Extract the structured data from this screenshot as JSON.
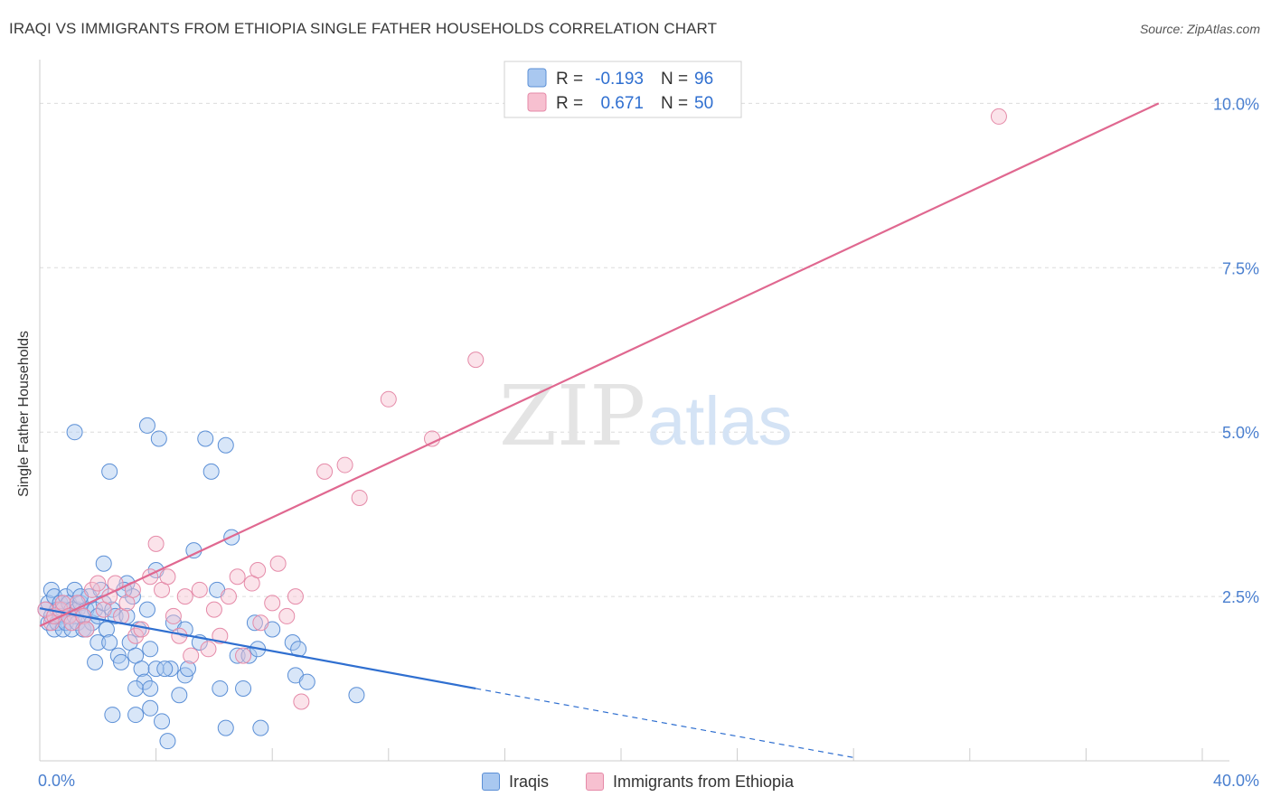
{
  "title": "IRAQI VS IMMIGRANTS FROM ETHIOPIA SINGLE FATHER HOUSEHOLDS CORRELATION CHART",
  "source": "Source: ZipAtlas.com",
  "watermark": {
    "zip": "ZIP",
    "atlas": "atlas"
  },
  "colors": {
    "blue_fill": "#a9c8f0",
    "blue_stroke": "#5b8fd6",
    "blue_line": "#2f6fd0",
    "pink_fill": "#f7c0d0",
    "pink_stroke": "#e58aa8",
    "pink_line": "#e06890",
    "tick_label": "#4a7fcf",
    "grid": "#dcdcdc"
  },
  "legend": {
    "rows": [
      {
        "r_label": "R =",
        "r_value": "-0.193",
        "n_label": "N =",
        "n_value": "96"
      },
      {
        "r_label": "R =",
        "r_value": "0.671",
        "n_label": "N =",
        "n_value": "50"
      }
    ]
  },
  "bottom_legend": {
    "series1": "Iraqis",
    "series2": "Immigrants from Ethiopia"
  },
  "chart_data": {
    "type": "scatter",
    "title": "IRAQI VS IMMIGRANTS FROM ETHIOPIA SINGLE FATHER HOUSEHOLDS CORRELATION CHART",
    "xlabel": "",
    "ylabel": "Single Father Households",
    "xlim": [
      0,
      40
    ],
    "ylim": [
      0,
      10.5
    ],
    "x_tick_labels": [
      "0.0%",
      "40.0%"
    ],
    "y_ticks": [
      2.5,
      5.0,
      7.5,
      10.0
    ],
    "y_tick_labels": [
      "2.5%",
      "5.0%",
      "7.5%",
      "10.0%"
    ],
    "grid": true,
    "legend_position": "top-center",
    "series": [
      {
        "name": "Iraqis",
        "r": -0.193,
        "n": 96,
        "trend": {
          "x0": 0,
          "y0": 2.32,
          "x1": 15.0,
          "y1": 1.1,
          "dash_to_x": 28.0,
          "dash_to_y": 0.05
        },
        "points": [
          [
            0.2,
            2.3
          ],
          [
            0.3,
            2.1
          ],
          [
            0.3,
            2.4
          ],
          [
            0.4,
            2.6
          ],
          [
            0.4,
            2.2
          ],
          [
            0.5,
            2.0
          ],
          [
            0.5,
            2.5
          ],
          [
            0.6,
            2.3
          ],
          [
            0.6,
            2.1
          ],
          [
            0.7,
            2.4
          ],
          [
            0.7,
            2.2
          ],
          [
            0.8,
            2.0
          ],
          [
            0.8,
            2.3
          ],
          [
            0.9,
            2.5
          ],
          [
            0.9,
            2.1
          ],
          [
            1.0,
            2.2
          ],
          [
            1.0,
            2.4
          ],
          [
            1.1,
            2.0
          ],
          [
            1.1,
            2.3
          ],
          [
            1.2,
            2.2
          ],
          [
            1.2,
            2.6
          ],
          [
            1.3,
            2.1
          ],
          [
            1.3,
            2.3
          ],
          [
            1.4,
            2.4
          ],
          [
            1.5,
            2.2
          ],
          [
            1.5,
            2.0
          ],
          [
            1.6,
            2.3
          ],
          [
            1.7,
            2.5
          ],
          [
            1.8,
            2.1
          ],
          [
            1.9,
            2.3
          ],
          [
            2.0,
            2.2
          ],
          [
            2.0,
            1.8
          ],
          [
            2.1,
            2.6
          ],
          [
            2.2,
            2.4
          ],
          [
            2.3,
            2.0
          ],
          [
            2.4,
            1.8
          ],
          [
            2.5,
            2.3
          ],
          [
            2.6,
            2.2
          ],
          [
            2.7,
            1.6
          ],
          [
            2.8,
            1.5
          ],
          [
            3.0,
            2.7
          ],
          [
            3.0,
            2.2
          ],
          [
            3.1,
            1.8
          ],
          [
            3.2,
            2.5
          ],
          [
            3.3,
            1.6
          ],
          [
            3.4,
            2.0
          ],
          [
            3.5,
            1.4
          ],
          [
            3.6,
            1.2
          ],
          [
            3.7,
            2.3
          ],
          [
            3.8,
            1.7
          ],
          [
            2.2,
            3.0
          ],
          [
            2.4,
            4.4
          ],
          [
            1.2,
            5.0
          ],
          [
            3.7,
            5.1
          ],
          [
            4.1,
            4.9
          ],
          [
            4.0,
            2.9
          ],
          [
            4.5,
            1.4
          ],
          [
            4.6,
            2.1
          ],
          [
            4.8,
            1.0
          ],
          [
            5.0,
            1.3
          ],
          [
            5.0,
            2.0
          ],
          [
            5.1,
            1.4
          ],
          [
            5.3,
            3.2
          ],
          [
            5.5,
            1.8
          ],
          [
            5.7,
            4.9
          ],
          [
            5.9,
            4.4
          ],
          [
            6.1,
            2.6
          ],
          [
            6.2,
            1.1
          ],
          [
            6.4,
            4.8
          ],
          [
            6.6,
            3.4
          ],
          [
            6.8,
            1.6
          ],
          [
            7.0,
            1.1
          ],
          [
            7.2,
            1.6
          ],
          [
            7.4,
            2.1
          ],
          [
            3.3,
            0.7
          ],
          [
            2.5,
            0.7
          ],
          [
            3.8,
            0.8
          ],
          [
            4.2,
            0.6
          ],
          [
            7.5,
            1.7
          ],
          [
            8.0,
            2.0
          ],
          [
            6.4,
            0.5
          ],
          [
            7.6,
            0.5
          ],
          [
            4.4,
            0.3
          ],
          [
            8.8,
            1.3
          ],
          [
            9.2,
            1.2
          ],
          [
            10.9,
            1.0
          ],
          [
            8.7,
            1.8
          ],
          [
            8.9,
            1.7
          ],
          [
            3.3,
            1.1
          ],
          [
            4.0,
            1.4
          ],
          [
            3.8,
            1.1
          ],
          [
            4.3,
            1.4
          ],
          [
            1.4,
            2.5
          ],
          [
            1.6,
            2.0
          ],
          [
            2.9,
            2.6
          ],
          [
            1.9,
            1.5
          ]
        ]
      },
      {
        "name": "Immigrants from Ethiopia",
        "r": 0.671,
        "n": 50,
        "trend": {
          "x0": 0,
          "y0": 2.05,
          "x1": 38.5,
          "y1": 10.0
        },
        "points": [
          [
            0.2,
            2.3
          ],
          [
            0.4,
            2.1
          ],
          [
            0.5,
            2.2
          ],
          [
            0.7,
            2.3
          ],
          [
            0.8,
            2.4
          ],
          [
            1.0,
            2.2
          ],
          [
            1.1,
            2.1
          ],
          [
            1.3,
            2.4
          ],
          [
            1.5,
            2.2
          ],
          [
            1.6,
            2.0
          ],
          [
            1.8,
            2.6
          ],
          [
            2.0,
            2.7
          ],
          [
            2.2,
            2.3
          ],
          [
            2.4,
            2.5
          ],
          [
            2.6,
            2.7
          ],
          [
            2.8,
            2.2
          ],
          [
            3.0,
            2.4
          ],
          [
            3.2,
            2.6
          ],
          [
            3.3,
            1.9
          ],
          [
            3.5,
            2.0
          ],
          [
            3.8,
            2.8
          ],
          [
            4.0,
            3.3
          ],
          [
            4.2,
            2.6
          ],
          [
            4.4,
            2.8
          ],
          [
            4.6,
            2.2
          ],
          [
            4.8,
            1.9
          ],
          [
            5.0,
            2.5
          ],
          [
            5.2,
            1.6
          ],
          [
            5.5,
            2.6
          ],
          [
            5.8,
            1.7
          ],
          [
            6.0,
            2.3
          ],
          [
            6.2,
            1.9
          ],
          [
            6.5,
            2.5
          ],
          [
            6.8,
            2.8
          ],
          [
            7.0,
            1.6
          ],
          [
            7.3,
            2.7
          ],
          [
            7.5,
            2.9
          ],
          [
            7.6,
            2.1
          ],
          [
            8.0,
            2.4
          ],
          [
            8.2,
            3.0
          ],
          [
            8.5,
            2.2
          ],
          [
            8.8,
            2.5
          ],
          [
            9.0,
            0.9
          ],
          [
            9.8,
            4.4
          ],
          [
            10.5,
            4.5
          ],
          [
            11.0,
            4.0
          ],
          [
            12.0,
            5.5
          ],
          [
            13.5,
            4.9
          ],
          [
            15.0,
            6.1
          ],
          [
            33.0,
            9.8
          ]
        ]
      }
    ]
  }
}
